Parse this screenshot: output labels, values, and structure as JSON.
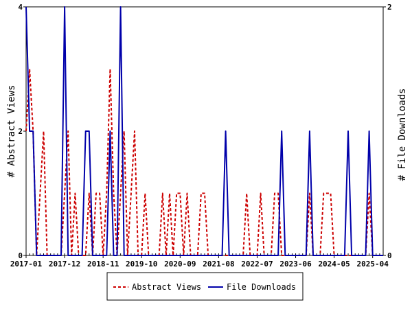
{
  "chart_data": {
    "type": "line",
    "x_tick_labels": [
      "2017-01",
      "2017-12",
      "2018-11",
      "2019-10",
      "2020-09",
      "2021-08",
      "2022-07",
      "2023-06",
      "2024-05",
      "2025-04"
    ],
    "y_left_label": "# Abstract Views",
    "y_right_label": "# File Downloads",
    "y_left_ticks": [
      "0",
      "2",
      "4"
    ],
    "y_right_ticks": [
      "0",
      "2"
    ],
    "y_left_range": [
      0,
      4
    ],
    "y_right_range": [
      0,
      2
    ],
    "legend_position": "bottom-center",
    "x_range_months": [
      0,
      102
    ],
    "series": [
      {
        "name": "Abstract Views",
        "axis": "left",
        "color": "#cc0000",
        "style": "dashed",
        "points": [
          [
            0,
            2
          ],
          [
            1,
            3
          ],
          [
            2,
            2
          ],
          [
            3,
            0
          ],
          [
            4,
            1
          ],
          [
            5,
            2
          ],
          [
            6,
            0
          ],
          [
            7,
            0
          ],
          [
            8,
            0
          ],
          [
            9,
            0
          ],
          [
            10,
            0
          ],
          [
            11,
            1
          ],
          [
            12,
            2
          ],
          [
            13,
            0
          ],
          [
            14,
            1
          ],
          [
            15,
            0
          ],
          [
            16,
            0
          ],
          [
            17,
            0
          ],
          [
            18,
            1
          ],
          [
            19,
            0
          ],
          [
            20,
            1
          ],
          [
            21,
            1
          ],
          [
            22,
            0
          ],
          [
            23,
            1
          ],
          [
            24,
            3
          ],
          [
            25,
            1
          ],
          [
            26,
            0
          ],
          [
            27,
            1
          ],
          [
            28,
            2
          ],
          [
            29,
            0
          ],
          [
            30,
            1
          ],
          [
            31,
            2
          ],
          [
            32,
            0
          ],
          [
            33,
            0
          ],
          [
            34,
            1
          ],
          [
            35,
            0
          ],
          [
            36,
            0
          ],
          [
            37,
            0
          ],
          [
            38,
            0
          ],
          [
            39,
            1
          ],
          [
            40,
            0
          ],
          [
            41,
            1
          ],
          [
            42,
            0
          ],
          [
            43,
            1
          ],
          [
            44,
            1
          ],
          [
            45,
            0
          ],
          [
            46,
            1
          ],
          [
            47,
            0
          ],
          [
            48,
            0
          ],
          [
            49,
            0
          ],
          [
            50,
            1
          ],
          [
            51,
            1
          ],
          [
            52,
            0
          ],
          [
            53,
            0
          ],
          [
            54,
            0
          ],
          [
            55,
            0
          ],
          [
            56,
            0
          ],
          [
            57,
            0
          ],
          [
            58,
            0
          ],
          [
            59,
            0
          ],
          [
            60,
            0
          ],
          [
            61,
            0
          ],
          [
            62,
            0
          ],
          [
            63,
            1
          ],
          [
            64,
            0
          ],
          [
            65,
            0
          ],
          [
            66,
            0
          ],
          [
            67,
            1
          ],
          [
            68,
            0
          ],
          [
            69,
            0
          ],
          [
            70,
            0
          ],
          [
            71,
            1
          ],
          [
            72,
            1
          ],
          [
            73,
            0
          ],
          [
            74,
            0
          ],
          [
            75,
            0
          ],
          [
            76,
            0
          ],
          [
            77,
            0
          ],
          [
            78,
            0
          ],
          [
            79,
            0
          ],
          [
            80,
            0
          ],
          [
            81,
            1
          ],
          [
            82,
            0
          ],
          [
            83,
            0
          ],
          [
            84,
            0
          ],
          [
            85,
            1
          ],
          [
            86,
            1
          ],
          [
            87,
            1
          ],
          [
            88,
            0
          ],
          [
            89,
            0
          ],
          [
            90,
            0
          ],
          [
            91,
            0
          ],
          [
            92,
            0
          ],
          [
            93,
            0
          ],
          [
            94,
            0
          ],
          [
            95,
            0
          ],
          [
            96,
            0
          ],
          [
            97,
            0
          ],
          [
            98,
            1
          ],
          [
            99,
            0
          ]
        ]
      },
      {
        "name": "File Downloads",
        "axis": "right",
        "color": "#0000aa",
        "style": "solid",
        "points": [
          [
            0,
            2
          ],
          [
            1,
            1
          ],
          [
            2,
            1
          ],
          [
            3,
            0
          ],
          [
            4,
            0
          ],
          [
            5,
            0
          ],
          [
            6,
            0
          ],
          [
            7,
            0
          ],
          [
            8,
            0
          ],
          [
            9,
            0
          ],
          [
            10,
            0
          ],
          [
            11,
            2
          ],
          [
            12,
            0
          ],
          [
            13,
            0
          ],
          [
            14,
            0
          ],
          [
            15,
            0
          ],
          [
            16,
            0
          ],
          [
            17,
            1
          ],
          [
            18,
            1
          ],
          [
            19,
            0
          ],
          [
            20,
            0
          ],
          [
            21,
            0
          ],
          [
            22,
            0
          ],
          [
            23,
            0
          ],
          [
            24,
            1
          ],
          [
            25,
            0
          ],
          [
            26,
            0
          ],
          [
            27,
            2
          ],
          [
            28,
            0
          ],
          [
            29,
            0
          ],
          [
            30,
            0
          ],
          [
            31,
            0
          ],
          [
            32,
            0
          ],
          [
            33,
            0
          ],
          [
            34,
            0
          ],
          [
            35,
            0
          ],
          [
            36,
            0
          ],
          [
            37,
            0
          ],
          [
            38,
            0
          ],
          [
            39,
            0
          ],
          [
            40,
            0
          ],
          [
            41,
            0
          ],
          [
            42,
            0
          ],
          [
            43,
            0
          ],
          [
            44,
            0
          ],
          [
            45,
            0
          ],
          [
            46,
            0
          ],
          [
            47,
            0
          ],
          [
            48,
            0
          ],
          [
            49,
            0
          ],
          [
            50,
            0
          ],
          [
            51,
            0
          ],
          [
            52,
            0
          ],
          [
            53,
            0
          ],
          [
            54,
            0
          ],
          [
            55,
            0
          ],
          [
            56,
            0
          ],
          [
            57,
            1
          ],
          [
            58,
            0
          ],
          [
            59,
            0
          ],
          [
            60,
            0
          ],
          [
            61,
            0
          ],
          [
            62,
            0
          ],
          [
            63,
            0
          ],
          [
            64,
            0
          ],
          [
            65,
            0
          ],
          [
            66,
            0
          ],
          [
            67,
            0
          ],
          [
            68,
            0
          ],
          [
            69,
            0
          ],
          [
            70,
            0
          ],
          [
            71,
            0
          ],
          [
            72,
            0
          ],
          [
            73,
            1
          ],
          [
            74,
            0
          ],
          [
            75,
            0
          ],
          [
            76,
            0
          ],
          [
            77,
            0
          ],
          [
            78,
            0
          ],
          [
            79,
            0
          ],
          [
            80,
            0
          ],
          [
            81,
            1
          ],
          [
            82,
            0
          ],
          [
            83,
            0
          ],
          [
            84,
            0
          ],
          [
            85,
            0
          ],
          [
            86,
            0
          ],
          [
            87,
            0
          ],
          [
            88,
            0
          ],
          [
            89,
            0
          ],
          [
            90,
            0
          ],
          [
            91,
            0
          ],
          [
            92,
            1
          ],
          [
            93,
            0
          ],
          [
            94,
            0
          ],
          [
            95,
            0
          ],
          [
            96,
            0
          ],
          [
            97,
            0
          ],
          [
            98,
            1
          ],
          [
            99,
            0
          ],
          [
            100,
            0
          ],
          [
            101,
            0
          ],
          [
            102,
            0
          ]
        ]
      }
    ]
  }
}
